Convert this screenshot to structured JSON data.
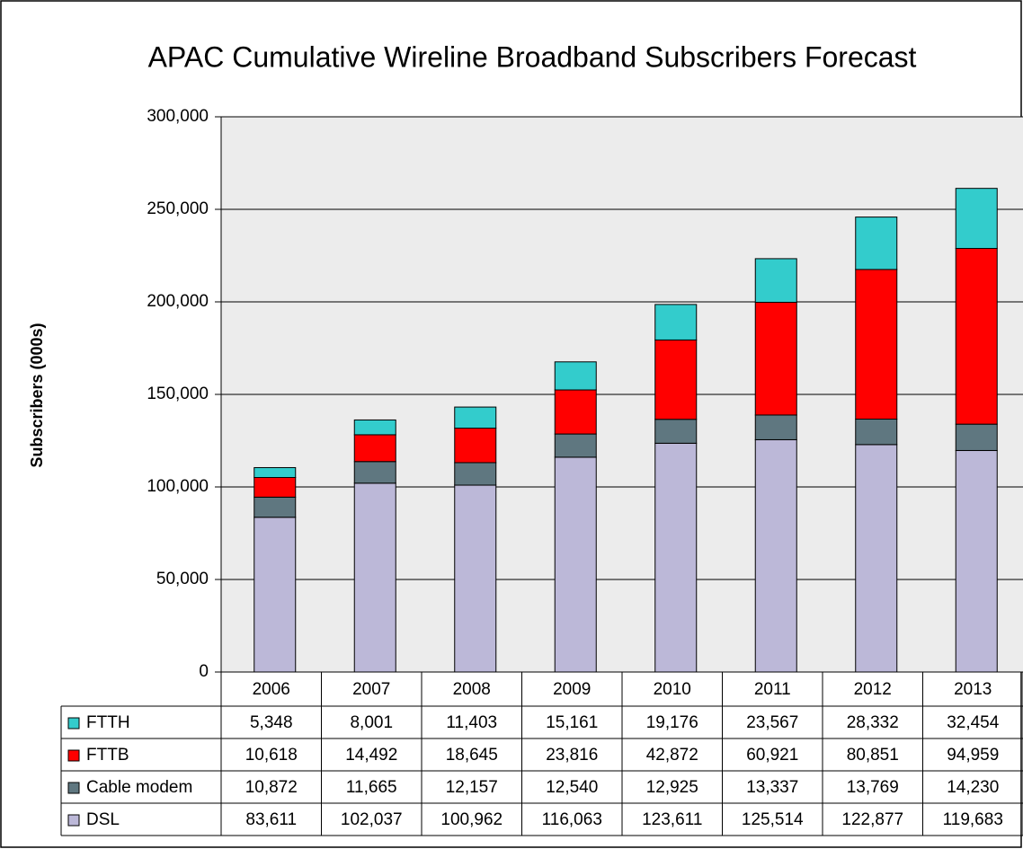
{
  "chart_data": {
    "type": "stacked_bar",
    "title": "APAC Cumulative Wireline Broadband Subscribers Forecast",
    "y_label": "Subscribers (000s)",
    "categories": [
      "2006",
      "2007",
      "2008",
      "2009",
      "2010",
      "2011",
      "2012",
      "2013"
    ],
    "series": [
      {
        "name": "FTTH",
        "color": "#33cccc",
        "values": [
          5348,
          8001,
          11403,
          15161,
          19176,
          23567,
          28332,
          32454
        ],
        "value_labels": [
          "5,348",
          "8,001",
          "11,403",
          "15,161",
          "19,176",
          "23,567",
          "28,332",
          "32,454"
        ]
      },
      {
        "name": "FTTB",
        "color": "#ff0000",
        "values": [
          10618,
          14492,
          18645,
          23816,
          42872,
          60921,
          80851,
          94959
        ],
        "value_labels": [
          "10,618",
          "14,492",
          "18,645",
          "23,816",
          "42,872",
          "60,921",
          "80,851",
          "94,959"
        ]
      },
      {
        "name": "Cable modem",
        "color": "#5f7780",
        "values": [
          10872,
          11665,
          12157,
          12540,
          12925,
          13337,
          13769,
          14230
        ],
        "value_labels": [
          "10,872",
          "11,665",
          "12,157",
          "12,540",
          "12,925",
          "13,337",
          "13,769",
          "14,230"
        ]
      },
      {
        "name": "DSL",
        "color": "#bcb8d8",
        "values": [
          83611,
          102037,
          100962,
          116063,
          123611,
          125514,
          122877,
          119683
        ],
        "value_labels": [
          "83,611",
          "102,037",
          "100,962",
          "116,063",
          "123,611",
          "125,514",
          "122,877",
          "119,683"
        ]
      }
    ],
    "ylim": [
      0,
      300000
    ],
    "yticks": [
      0,
      {
        "value": 50000,
        "label": "50,000"
      },
      {
        "value": 100000,
        "label": "100,000"
      },
      {
        "value": 150000,
        "label": "150,000"
      },
      {
        "value": 200000,
        "label": "200,000"
      },
      {
        "value": 250000,
        "label": "250,000"
      },
      {
        "value": 300000,
        "label": "300,000"
      }
    ],
    "grid": true
  }
}
